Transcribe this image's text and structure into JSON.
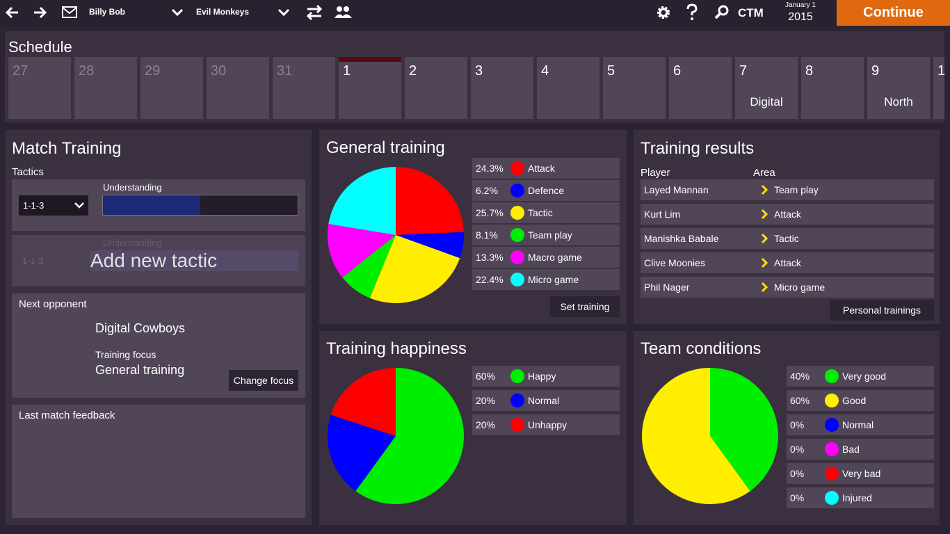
{
  "topbar": {
    "user": "Billy Bob",
    "team": "Evil Monkeys",
    "ctm": "CTM",
    "date_day": "January 1",
    "date_year": "2015",
    "continue": "Continue"
  },
  "schedule": {
    "title": "Schedule",
    "days": [
      {
        "day": "27",
        "past": true
      },
      {
        "day": "28",
        "past": true
      },
      {
        "day": "29",
        "past": true
      },
      {
        "day": "30",
        "past": true
      },
      {
        "day": "31",
        "past": true
      },
      {
        "day": "1",
        "today": true
      },
      {
        "day": "2"
      },
      {
        "day": "3"
      },
      {
        "day": "4"
      },
      {
        "day": "5"
      },
      {
        "day": "6"
      },
      {
        "day": "7",
        "event": "Digital"
      },
      {
        "day": "8"
      },
      {
        "day": "9",
        "event": "North"
      },
      {
        "day": "1"
      }
    ]
  },
  "match_training": {
    "title": "Match Training",
    "tactics_label": "Tactics",
    "tactic": "1-1-3",
    "understanding_label": "Understanding",
    "understanding": 50,
    "understanding_range": [
      0,
      100
    ],
    "new_tactic": {
      "tactic": "1-1-3",
      "understanding_label": "Understanding",
      "add": "Add new tactic"
    },
    "next_opponent": {
      "label": "Next opponent",
      "name": "Digital Cowboys",
      "focus_label": "Training focus",
      "focus": "General training",
      "button": "Change focus"
    },
    "feedback": {
      "label": "Last match feedback"
    }
  },
  "general_training": {
    "title": "General training",
    "button": "Set training",
    "chart": {
      "type": "pie",
      "categories": [
        "Attack",
        "Defence",
        "Tactic",
        "Team play",
        "Macro game",
        "Micro game"
      ],
      "values": [
        24.3,
        6.2,
        25.7,
        8.1,
        13.3,
        22.4
      ],
      "value_labels": [
        "24.3%",
        "6.2%",
        "25.7%",
        "8.1%",
        "13.3%",
        "22.4%"
      ],
      "colors": [
        "#ff0000",
        "#0000ff",
        "#ffee00",
        "#00ee00",
        "#ff00ff",
        "#00ffff"
      ]
    }
  },
  "training_happiness": {
    "title": "Training happiness",
    "chart": {
      "type": "pie",
      "categories": [
        "Happy",
        "Normal",
        "Unhappy"
      ],
      "values": [
        60,
        20,
        20
      ],
      "value_labels": [
        "60%",
        "20%",
        "20%"
      ],
      "colors": [
        "#00ee00",
        "#0000ff",
        "#ff0000"
      ]
    }
  },
  "training_results": {
    "title": "Training results",
    "columns": [
      "Player",
      "Area"
    ],
    "rows": [
      [
        "Layed Mannan",
        "Team play"
      ],
      [
        "Kurt Lim",
        "Attack"
      ],
      [
        "Manishka Babale",
        "Tactic"
      ],
      [
        "Clive Moonies",
        "Attack"
      ],
      [
        "Phil Nager",
        "Micro game"
      ]
    ],
    "button": "Personal trainings"
  },
  "team_conditions": {
    "title": "Team conditions",
    "chart": {
      "type": "pie",
      "categories": [
        "Very good",
        "Good",
        "Normal",
        "Bad",
        "Very bad",
        "Injured"
      ],
      "values": [
        40,
        60,
        0,
        0,
        0,
        0
      ],
      "value_labels": [
        "40%",
        "60%",
        "0%",
        "0%",
        "0%",
        "0%"
      ],
      "colors": [
        "#00ee00",
        "#ffee00",
        "#0000ff",
        "#ff00ff",
        "#ff0000",
        "#00ffff"
      ]
    }
  }
}
